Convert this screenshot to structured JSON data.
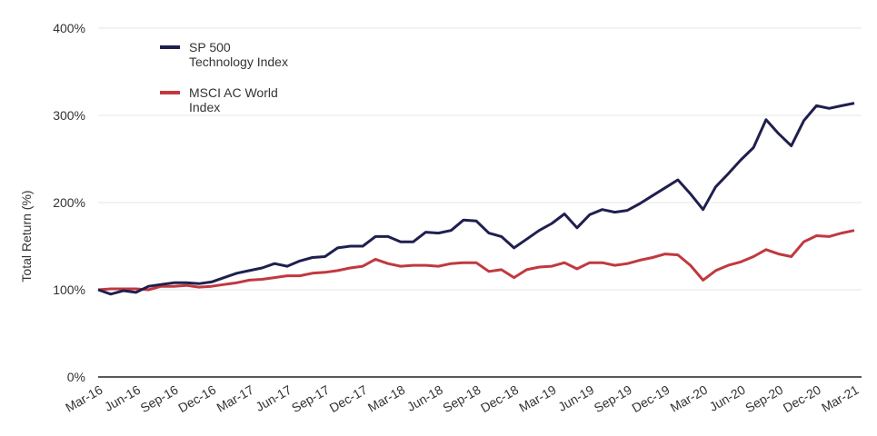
{
  "chart_data": {
    "type": "line",
    "ylabel": "Total Return (%)",
    "xlabel": "",
    "ylim": [
      0,
      400
    ],
    "yticks": [
      "0%",
      "100%",
      "200%",
      "300%",
      "400%"
    ],
    "yticks_values": [
      0,
      100,
      200,
      300,
      400
    ],
    "xtick_labels": [
      "Mar-16",
      "Jun-16",
      "Sep-16",
      "Dec-16",
      "Mar-17",
      "Jun-17",
      "Sep-17",
      "Dec-17",
      "Mar-18",
      "Jun-18",
      "Sep-18",
      "Dec-18",
      "Mar-19",
      "Jun-19",
      "Sep-19",
      "Dec-19",
      "Mar-20",
      "Jun-20",
      "Sep-20",
      "Dec-20",
      "Mar-21"
    ],
    "x_start": "Mar-16",
    "x_frequency": "monthly",
    "grid": true,
    "legend_placement": "top-left",
    "series": [
      {
        "name": "SP 500 Technology Index",
        "legend_lines": [
          "SP 500",
          "Technology Index"
        ],
        "color": "#1f1f4f",
        "values": [
          100,
          95,
          99,
          97,
          104,
          106,
          108,
          108,
          107,
          109,
          114,
          119,
          122,
          125,
          130,
          127,
          133,
          137,
          138,
          148,
          150,
          150,
          161,
          161,
          155,
          155,
          166,
          165,
          168,
          180,
          179,
          165,
          161,
          148,
          158,
          168,
          176,
          187,
          171,
          186,
          192,
          189,
          191,
          199,
          208,
          217,
          226,
          210,
          192,
          218,
          233,
          249,
          263,
          295,
          279,
          265,
          294,
          311,
          308,
          311,
          314
        ]
      },
      {
        "name": "MSCI AC World Index",
        "legend_lines": [
          "MSCI AC World",
          "Index"
        ],
        "color": "#c0393f",
        "values": [
          100,
          101,
          101,
          101,
          100,
          104,
          104,
          105,
          103,
          104,
          106,
          108,
          111,
          112,
          114,
          116,
          116,
          119,
          120,
          122,
          125,
          127,
          135,
          130,
          127,
          128,
          128,
          127,
          130,
          131,
          131,
          121,
          123,
          114,
          123,
          126,
          127,
          131,
          124,
          131,
          131,
          128,
          130,
          134,
          137,
          141,
          140,
          128,
          111,
          122,
          128,
          132,
          138,
          146,
          141,
          138,
          155,
          162,
          161,
          165,
          168
        ]
      }
    ]
  }
}
